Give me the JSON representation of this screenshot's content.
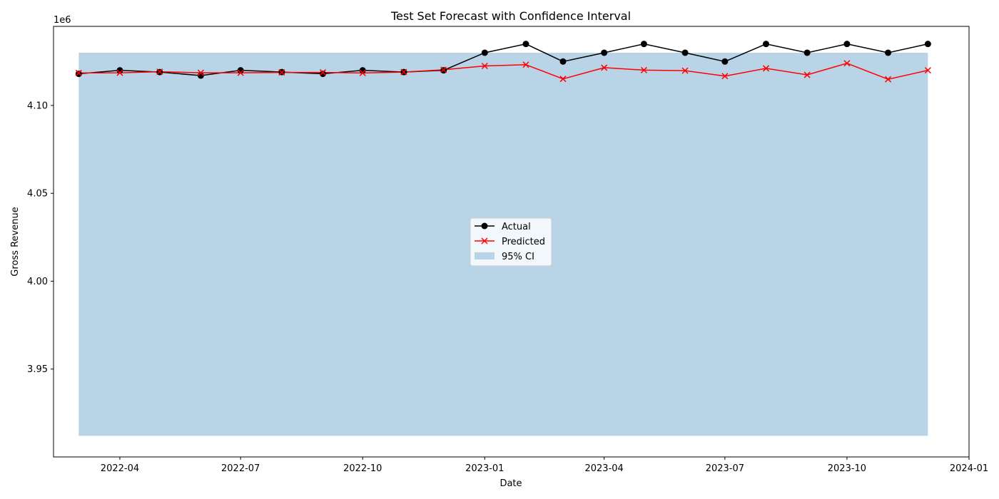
{
  "chart_data": {
    "type": "line",
    "title": "Test Set Forecast with Confidence Interval",
    "xlabel": "Date",
    "ylabel": "Gross Revenue",
    "y_offset_label": "1e6",
    "y_scale": 1000000,
    "ylim": [
      3900000,
      4145000
    ],
    "xlim": [
      "2022-02-10",
      "2024-01-01"
    ],
    "grid": false,
    "legend_position": "center",
    "x_ticks": [
      "2022-04-01",
      "2022-07-01",
      "2022-10-01",
      "2023-01-01",
      "2023-04-01",
      "2023-07-01",
      "2023-10-01",
      "2024-01-01"
    ],
    "x_tick_labels": [
      "2022-04",
      "2022-07",
      "2022-10",
      "2023-01",
      "2023-04",
      "2023-07",
      "2023-10",
      "2024-01"
    ],
    "y_ticks": [
      3950000,
      4000000,
      4050000,
      4100000
    ],
    "y_tick_labels": [
      "3.95",
      "4.00",
      "4.05",
      "4.10"
    ],
    "x": [
      "2022-03-01",
      "2022-04-01",
      "2022-05-01",
      "2022-06-01",
      "2022-07-01",
      "2022-08-01",
      "2022-09-01",
      "2022-10-01",
      "2022-11-01",
      "2022-12-01",
      "2023-01-01",
      "2023-02-01",
      "2023-03-01",
      "2023-04-01",
      "2023-05-01",
      "2023-06-01",
      "2023-07-01",
      "2023-08-01",
      "2023-09-01",
      "2023-10-01",
      "2023-11-01",
      "2023-12-01"
    ],
    "series": [
      {
        "name": "Actual",
        "color": "#000000",
        "marker": "circle",
        "values": [
          4118000,
          4120000,
          4119000,
          4117000,
          4120000,
          4119000,
          4118000,
          4120000,
          4119000,
          4120000,
          4130000,
          4135000,
          4125000,
          4130000,
          4135000,
          4130000,
          4125000,
          4135000,
          4130000,
          4135000,
          4130000,
          4135000
        ]
      },
      {
        "name": "Predicted",
        "color": "#ff0000",
        "marker": "x",
        "values": [
          4118500,
          4118600,
          4119200,
          4118600,
          4118600,
          4118800,
          4118800,
          4118500,
          4119000,
          4120300,
          4122500,
          4123200,
          4115100,
          4121500,
          4120100,
          4119800,
          4116700,
          4121100,
          4117400,
          4124000,
          4114900,
          4120000
        ]
      }
    ],
    "confidence_band": {
      "name": "95% CI",
      "color": "#b9d4e7",
      "lower": 3912000,
      "upper": 4130000
    }
  }
}
